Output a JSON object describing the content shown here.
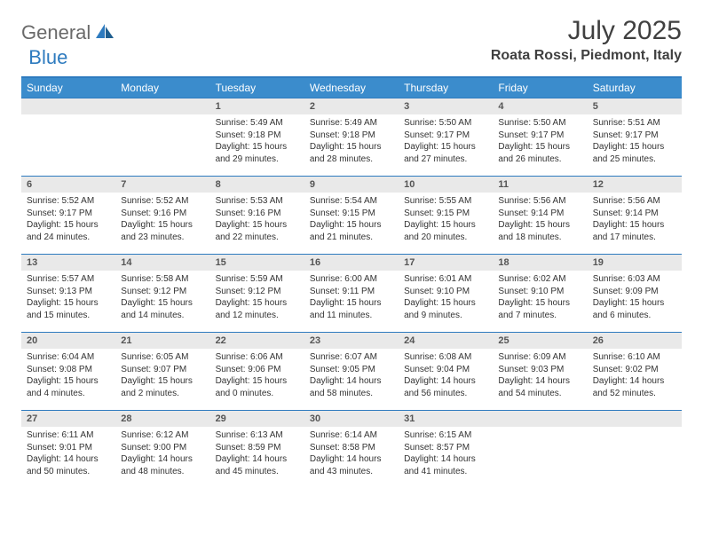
{
  "logo": {
    "part1": "General",
    "part2": "Blue"
  },
  "title": "July 2025",
  "location": "Roata Rossi, Piedmont, Italy",
  "colors": {
    "header_bg": "#3b8ccc",
    "header_border": "#2e7bbf",
    "daynum_bg": "#e9e9e9",
    "text": "#333333",
    "logo_gray": "#6a6a6a",
    "logo_blue": "#2e7bbf"
  },
  "weekdays": [
    "Sunday",
    "Monday",
    "Tuesday",
    "Wednesday",
    "Thursday",
    "Friday",
    "Saturday"
  ],
  "weeks": [
    [
      null,
      null,
      {
        "n": "1",
        "sr": "5:49 AM",
        "ss": "9:18 PM",
        "dl": "15 hours and 29 minutes."
      },
      {
        "n": "2",
        "sr": "5:49 AM",
        "ss": "9:18 PM",
        "dl": "15 hours and 28 minutes."
      },
      {
        "n": "3",
        "sr": "5:50 AM",
        "ss": "9:17 PM",
        "dl": "15 hours and 27 minutes."
      },
      {
        "n": "4",
        "sr": "5:50 AM",
        "ss": "9:17 PM",
        "dl": "15 hours and 26 minutes."
      },
      {
        "n": "5",
        "sr": "5:51 AM",
        "ss": "9:17 PM",
        "dl": "15 hours and 25 minutes."
      }
    ],
    [
      {
        "n": "6",
        "sr": "5:52 AM",
        "ss": "9:17 PM",
        "dl": "15 hours and 24 minutes."
      },
      {
        "n": "7",
        "sr": "5:52 AM",
        "ss": "9:16 PM",
        "dl": "15 hours and 23 minutes."
      },
      {
        "n": "8",
        "sr": "5:53 AM",
        "ss": "9:16 PM",
        "dl": "15 hours and 22 minutes."
      },
      {
        "n": "9",
        "sr": "5:54 AM",
        "ss": "9:15 PM",
        "dl": "15 hours and 21 minutes."
      },
      {
        "n": "10",
        "sr": "5:55 AM",
        "ss": "9:15 PM",
        "dl": "15 hours and 20 minutes."
      },
      {
        "n": "11",
        "sr": "5:56 AM",
        "ss": "9:14 PM",
        "dl": "15 hours and 18 minutes."
      },
      {
        "n": "12",
        "sr": "5:56 AM",
        "ss": "9:14 PM",
        "dl": "15 hours and 17 minutes."
      }
    ],
    [
      {
        "n": "13",
        "sr": "5:57 AM",
        "ss": "9:13 PM",
        "dl": "15 hours and 15 minutes."
      },
      {
        "n": "14",
        "sr": "5:58 AM",
        "ss": "9:12 PM",
        "dl": "15 hours and 14 minutes."
      },
      {
        "n": "15",
        "sr": "5:59 AM",
        "ss": "9:12 PM",
        "dl": "15 hours and 12 minutes."
      },
      {
        "n": "16",
        "sr": "6:00 AM",
        "ss": "9:11 PM",
        "dl": "15 hours and 11 minutes."
      },
      {
        "n": "17",
        "sr": "6:01 AM",
        "ss": "9:10 PM",
        "dl": "15 hours and 9 minutes."
      },
      {
        "n": "18",
        "sr": "6:02 AM",
        "ss": "9:10 PM",
        "dl": "15 hours and 7 minutes."
      },
      {
        "n": "19",
        "sr": "6:03 AM",
        "ss": "9:09 PM",
        "dl": "15 hours and 6 minutes."
      }
    ],
    [
      {
        "n": "20",
        "sr": "6:04 AM",
        "ss": "9:08 PM",
        "dl": "15 hours and 4 minutes."
      },
      {
        "n": "21",
        "sr": "6:05 AM",
        "ss": "9:07 PM",
        "dl": "15 hours and 2 minutes."
      },
      {
        "n": "22",
        "sr": "6:06 AM",
        "ss": "9:06 PM",
        "dl": "15 hours and 0 minutes."
      },
      {
        "n": "23",
        "sr": "6:07 AM",
        "ss": "9:05 PM",
        "dl": "14 hours and 58 minutes."
      },
      {
        "n": "24",
        "sr": "6:08 AM",
        "ss": "9:04 PM",
        "dl": "14 hours and 56 minutes."
      },
      {
        "n": "25",
        "sr": "6:09 AM",
        "ss": "9:03 PM",
        "dl": "14 hours and 54 minutes."
      },
      {
        "n": "26",
        "sr": "6:10 AM",
        "ss": "9:02 PM",
        "dl": "14 hours and 52 minutes."
      }
    ],
    [
      {
        "n": "27",
        "sr": "6:11 AM",
        "ss": "9:01 PM",
        "dl": "14 hours and 50 minutes."
      },
      {
        "n": "28",
        "sr": "6:12 AM",
        "ss": "9:00 PM",
        "dl": "14 hours and 48 minutes."
      },
      {
        "n": "29",
        "sr": "6:13 AM",
        "ss": "8:59 PM",
        "dl": "14 hours and 45 minutes."
      },
      {
        "n": "30",
        "sr": "6:14 AM",
        "ss": "8:58 PM",
        "dl": "14 hours and 43 minutes."
      },
      {
        "n": "31",
        "sr": "6:15 AM",
        "ss": "8:57 PM",
        "dl": "14 hours and 41 minutes."
      },
      null,
      null
    ]
  ],
  "labels": {
    "sunrise": "Sunrise:",
    "sunset": "Sunset:",
    "daylight": "Daylight:"
  }
}
